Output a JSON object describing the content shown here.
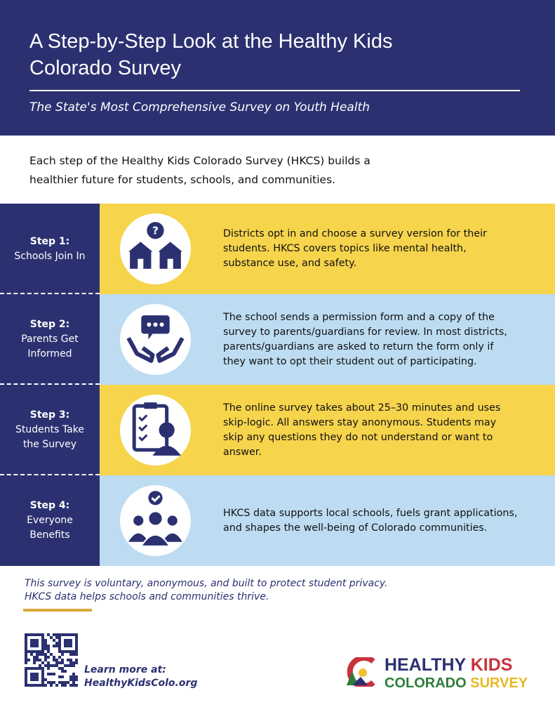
{
  "header": {
    "title": "A Step-by-Step Look at the Healthy Kids Colorado Survey",
    "subtitle": "The State's Most Comprehensive Survey on Youth Health"
  },
  "intro": "Each step of the Healthy Kids Colorado Survey (HKCS) builds a healthier future for students, schools, and communities.",
  "steps": [
    {
      "label": "Step 1:",
      "name": "Schools Join In",
      "description": "Districts opt in and choose a survey version for their students. HKCS covers topics like mental health, substance use, and safety."
    },
    {
      "label": "Step 2:",
      "name": "Parents Get Informed",
      "description": "The school sends a permission form and a copy of the survey to parents/guardians for review. In most districts, parents/guardians are asked to return the form only if they want to opt their student out of participating."
    },
    {
      "label": "Step 3:",
      "name": "Students Take the Survey",
      "description": "The online survey takes about 25–30 minutes and uses skip-logic. All answers stay anonymous. Students may skip any questions they do not understand or want to answer."
    },
    {
      "label": "Step 4:",
      "name": "Everyone Benefits",
      "description": "HKCS data supports local schools, fuels grant applications, and shapes the well-being of Colorado communities."
    }
  ],
  "footer": {
    "note": [
      "This survey is voluntary, anonymous, and built to protect student privacy.",
      "HKCS data helps schools and communities thrive."
    ],
    "learn_more": "Learn more at:",
    "url": "HealthyKidsColo.org",
    "logo": {
      "line1": [
        "HEALTHY",
        "KIDS"
      ],
      "line2": [
        "COLORADO",
        "SURVEY"
      ]
    }
  }
}
